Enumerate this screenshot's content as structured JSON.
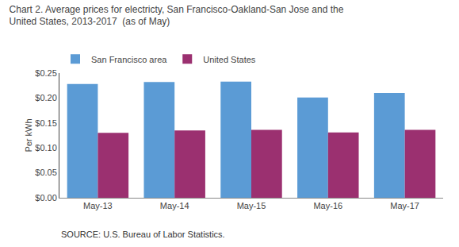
{
  "chart_data": {
    "type": "bar",
    "title": "Chart 2. Average prices for electricty, San Francisco-Oakland-San Jose and the",
    "subtitle": "United States, 2013-2017  (as of May)",
    "ylabel": "Per kWh",
    "annotations": [
      "SOURCE: U.S. Bureau of Labor Statistics."
    ],
    "categories": [
      "May-13",
      "May-14",
      "May-15",
      "May-16",
      "May-17"
    ],
    "series": [
      {
        "name": "San Francisco area",
        "color": "#5B9BD5",
        "values": [
          0.228,
          0.232,
          0.233,
          0.201,
          0.21
        ]
      },
      {
        "name": "United States",
        "color": "#9B3070",
        "values": [
          0.13,
          0.135,
          0.136,
          0.131,
          0.136
        ]
      }
    ],
    "ylim": [
      0.0,
      0.25
    ],
    "yticks": [
      {
        "value": 0.0,
        "label": "$0.00"
      },
      {
        "value": 0.05,
        "label": "$0.05"
      },
      {
        "value": 0.1,
        "label": "$0.10"
      },
      {
        "value": 0.15,
        "label": "$0.15"
      },
      {
        "value": 0.2,
        "label": "$0.20"
      },
      {
        "value": 0.25,
        "label": "$0.25"
      }
    ],
    "grid": false,
    "legend": "upper left"
  }
}
